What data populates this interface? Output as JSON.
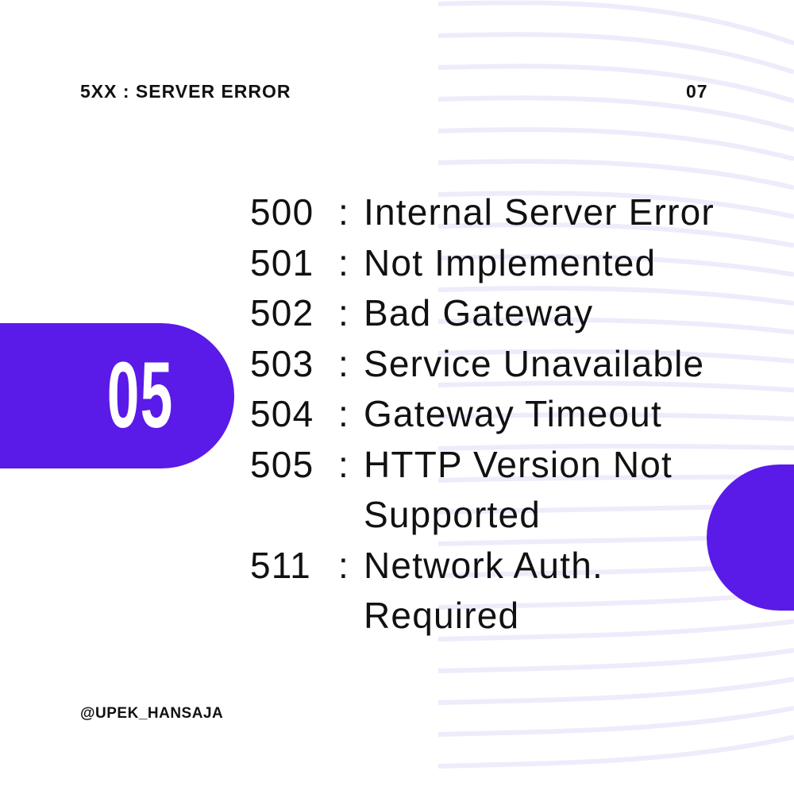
{
  "header": {
    "title": "5XX : SERVER ERROR",
    "page_number": "07"
  },
  "badge": {
    "number": "05"
  },
  "codes": [
    {
      "code": "500",
      "sep": ":",
      "desc": "Internal Server Error"
    },
    {
      "code": "501",
      "sep": ":",
      "desc": "Not Implemented"
    },
    {
      "code": "502",
      "sep": ":",
      "desc": "Bad Gateway"
    },
    {
      "code": "503",
      "sep": ":",
      "desc": "Service Unavailable"
    },
    {
      "code": "504",
      "sep": ":",
      "desc": "Gateway Timeout"
    },
    {
      "code": "505",
      "sep": ":",
      "desc": "HTTP Version Not"
    },
    {
      "code": "",
      "sep": "",
      "desc": "Supported"
    },
    {
      "code": "511",
      "sep": ":",
      "desc": "Network Auth."
    },
    {
      "code": "",
      "sep": "",
      "desc": "Required"
    }
  ],
  "footer": {
    "handle": "@UPEK_HANSAJA"
  },
  "colors": {
    "accent": "#5a1ae8",
    "wave": "#efebfb",
    "text": "#111111"
  }
}
